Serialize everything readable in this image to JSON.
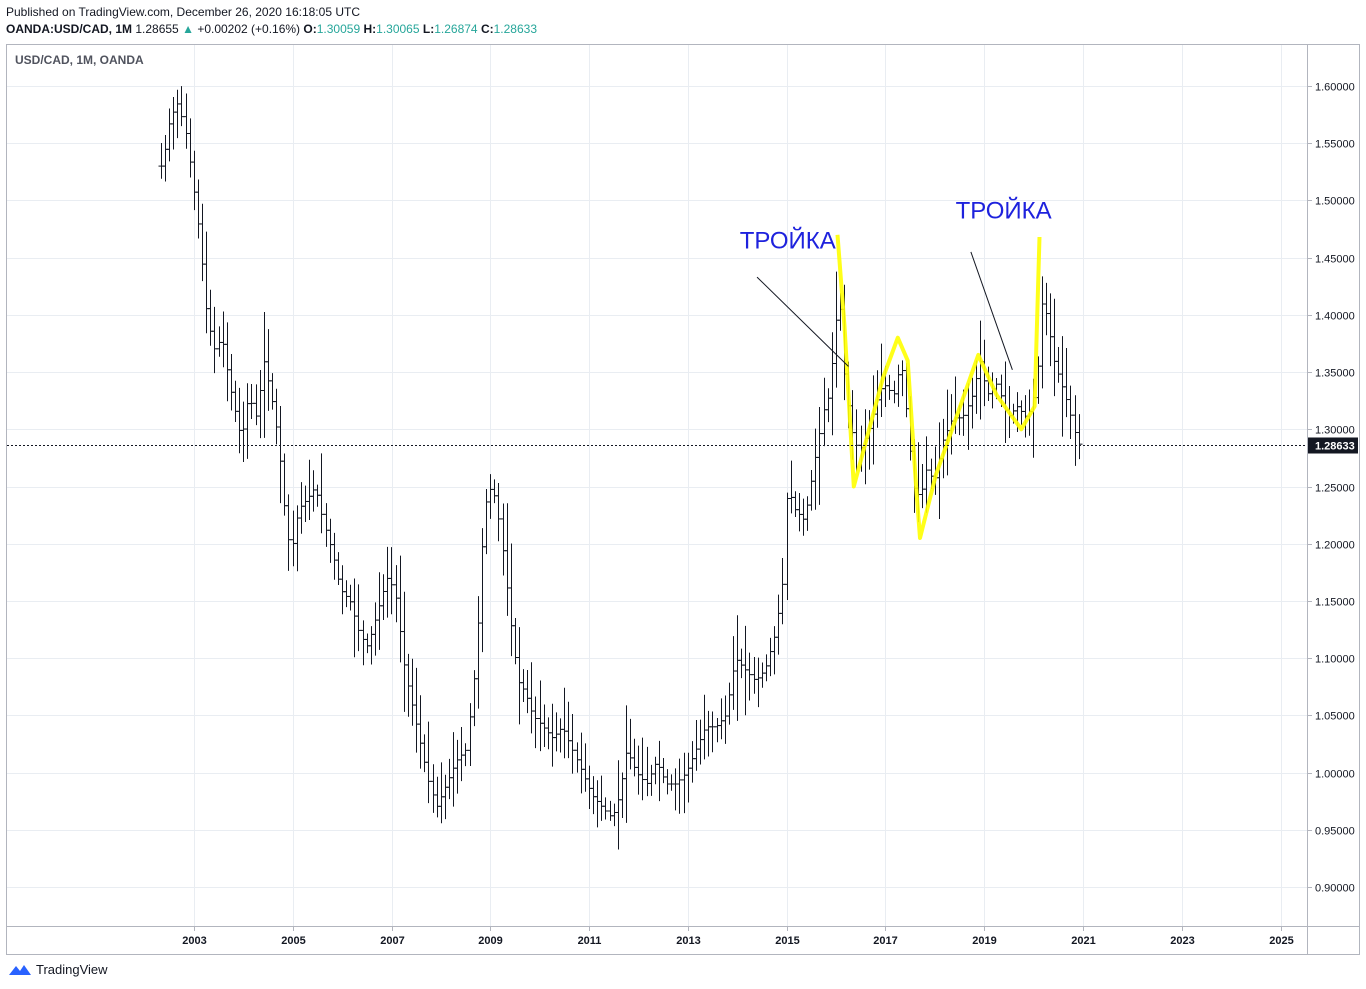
{
  "header": {
    "published": "Published on TradingView.com, December 26, 2020 16:18:05 UTC",
    "symbol": "OANDA:USD/CAD, 1M",
    "last": "1.28655",
    "up_arrow": "▲",
    "change": "+0.00202 (+0.16%)",
    "o_label": "O:",
    "o_value": "1.30059",
    "h_label": "H:",
    "h_value": "1.30065",
    "l_label": "L:",
    "l_value": "1.26874",
    "c_label": "C:",
    "c_value": "1.28633"
  },
  "footer": {
    "brand": "TradingView",
    "logo_icon": "tradingview-logo-icon"
  },
  "colors": {
    "bars": "#131722",
    "grid": "#e9edf2",
    "zigzag": "#ffff00",
    "annotation_text": "#1e22dd",
    "price_tag": "#131722"
  },
  "chart_data": {
    "type": "ohlc",
    "title": "USD/CAD, 1M, OANDA",
    "symbol": "USD/CAD",
    "interval": "1M",
    "broker": "OANDA",
    "ylim": [
      0.87,
      1.62
    ],
    "yticks": [
      "0.90000",
      "0.95000",
      "1.00000",
      "1.05000",
      "1.10000",
      "1.15000",
      "1.20000",
      "1.25000",
      "1.30000",
      "1.35000",
      "1.40000",
      "1.45000",
      "1.50000",
      "1.55000",
      "1.60000"
    ],
    "xticks": [
      "2003",
      "2005",
      "2007",
      "2009",
      "2011",
      "2013",
      "2015",
      "2017",
      "2019",
      "2021",
      "2023",
      "2025"
    ],
    "current_price": 1.28633,
    "current_price_label": "1.28633",
    "grid": true,
    "anchors": [
      [
        2002.4,
        1.53
      ],
      [
        2002.55,
        1.57
      ],
      [
        2002.7,
        1.585
      ],
      [
        2002.85,
        1.565
      ],
      [
        2003.0,
        1.52
      ],
      [
        2003.15,
        1.47
      ],
      [
        2003.3,
        1.4
      ],
      [
        2003.45,
        1.37
      ],
      [
        2003.6,
        1.38
      ],
      [
        2003.75,
        1.34
      ],
      [
        2003.9,
        1.31
      ],
      [
        2004.0,
        1.29
      ],
      [
        2004.15,
        1.33
      ],
      [
        2004.3,
        1.31
      ],
      [
        2004.45,
        1.36
      ],
      [
        2004.6,
        1.33
      ],
      [
        2004.75,
        1.29
      ],
      [
        2004.9,
        1.22
      ],
      [
        2005.0,
        1.19
      ],
      [
        2005.15,
        1.23
      ],
      [
        2005.35,
        1.24
      ],
      [
        2005.5,
        1.25
      ],
      [
        2005.65,
        1.22
      ],
      [
        2005.85,
        1.19
      ],
      [
        2006.0,
        1.16
      ],
      [
        2006.2,
        1.15
      ],
      [
        2006.4,
        1.12
      ],
      [
        2006.55,
        1.11
      ],
      [
        2006.75,
        1.14
      ],
      [
        2006.95,
        1.17
      ],
      [
        2007.1,
        1.16
      ],
      [
        2007.3,
        1.09
      ],
      [
        2007.5,
        1.05
      ],
      [
        2007.65,
        1.02
      ],
      [
        2007.8,
        0.99
      ],
      [
        2007.95,
        0.97
      ],
      [
        2008.15,
        0.99
      ],
      [
        2008.35,
        1.01
      ],
      [
        2008.55,
        1.02
      ],
      [
        2008.75,
        1.1
      ],
      [
        2008.9,
        1.22
      ],
      [
        2009.0,
        1.25
      ],
      [
        2009.15,
        1.24
      ],
      [
        2009.3,
        1.19
      ],
      [
        2009.45,
        1.13
      ],
      [
        2009.6,
        1.08
      ],
      [
        2009.75,
        1.07
      ],
      [
        2009.9,
        1.05
      ],
      [
        2010.1,
        1.04
      ],
      [
        2010.3,
        1.03
      ],
      [
        2010.5,
        1.04
      ],
      [
        2010.7,
        1.02
      ],
      [
        2010.9,
        1.0
      ],
      [
        2011.1,
        0.98
      ],
      [
        2011.3,
        0.97
      ],
      [
        2011.5,
        0.96
      ],
      [
        2011.65,
        0.98
      ],
      [
        2011.8,
        1.02
      ],
      [
        2012.0,
        1.0
      ],
      [
        2012.2,
        0.99
      ],
      [
        2012.4,
        1.01
      ],
      [
        2012.6,
        0.99
      ],
      [
        2012.8,
        0.99
      ],
      [
        2013.0,
        1.0
      ],
      [
        2013.2,
        1.02
      ],
      [
        2013.4,
        1.04
      ],
      [
        2013.6,
        1.04
      ],
      [
        2013.8,
        1.05
      ],
      [
        2014.0,
        1.1
      ],
      [
        2014.2,
        1.09
      ],
      [
        2014.4,
        1.08
      ],
      [
        2014.6,
        1.09
      ],
      [
        2014.8,
        1.12
      ],
      [
        2014.95,
        1.16
      ],
      [
        2015.05,
        1.25
      ],
      [
        2015.2,
        1.23
      ],
      [
        2015.4,
        1.22
      ],
      [
        2015.6,
        1.27
      ],
      [
        2015.8,
        1.32
      ],
      [
        2015.9,
        1.33
      ],
      [
        2016.0,
        1.38
      ],
      [
        2016.1,
        1.42
      ],
      [
        2016.2,
        1.35
      ],
      [
        2016.35,
        1.3
      ],
      [
        2016.5,
        1.28
      ],
      [
        2016.7,
        1.3
      ],
      [
        2016.9,
        1.33
      ],
      [
        2017.0,
        1.34
      ],
      [
        2017.2,
        1.33
      ],
      [
        2017.35,
        1.36
      ],
      [
        2017.5,
        1.3
      ],
      [
        2017.6,
        1.25
      ],
      [
        2017.75,
        1.24
      ],
      [
        2017.9,
        1.27
      ],
      [
        2018.0,
        1.25
      ],
      [
        2018.2,
        1.29
      ],
      [
        2018.4,
        1.31
      ],
      [
        2018.6,
        1.31
      ],
      [
        2018.8,
        1.33
      ],
      [
        2018.95,
        1.36
      ],
      [
        2019.1,
        1.33
      ],
      [
        2019.3,
        1.34
      ],
      [
        2019.5,
        1.31
      ],
      [
        2019.7,
        1.32
      ],
      [
        2019.9,
        1.31
      ],
      [
        2020.0,
        1.32
      ],
      [
        2020.1,
        1.34
      ],
      [
        2020.2,
        1.41
      ],
      [
        2020.3,
        1.4
      ],
      [
        2020.45,
        1.36
      ],
      [
        2020.6,
        1.34
      ],
      [
        2020.75,
        1.32
      ],
      [
        2020.85,
        1.3
      ],
      [
        2020.95,
        1.287
      ]
    ],
    "overlays": {
      "zigzag_a": [
        [
          2016.03,
          1.47
        ],
        [
          2016.17,
          1.39
        ],
        [
          2016.36,
          1.25
        ],
        [
          2016.95,
          1.345
        ],
        [
          2017.25,
          1.38
        ],
        [
          2017.45,
          1.36
        ],
        [
          2017.62,
          1.25
        ]
      ],
      "zigzag_b": [
        [
          2017.62,
          1.25
        ],
        [
          2017.7,
          1.205
        ],
        [
          2018.02,
          1.26
        ],
        [
          2018.35,
          1.3
        ],
        [
          2018.88,
          1.365
        ],
        [
          2019.25,
          1.33
        ],
        [
          2019.75,
          1.3
        ],
        [
          2020.02,
          1.32
        ],
        [
          2020.12,
          1.468
        ]
      ],
      "notes": [
        {
          "text": "ТРОЙКА",
          "x": 2014.05,
          "y": 1.458,
          "to": [
            [
              2014.4,
              1.433
            ],
            [
              2016.25,
              1.355
            ]
          ]
        },
        {
          "text": "ТРОЙКА",
          "x": 2018.42,
          "y": 1.484,
          "to": [
            [
              2018.73,
              1.455
            ],
            [
              2019.57,
              1.352
            ]
          ]
        }
      ]
    }
  }
}
